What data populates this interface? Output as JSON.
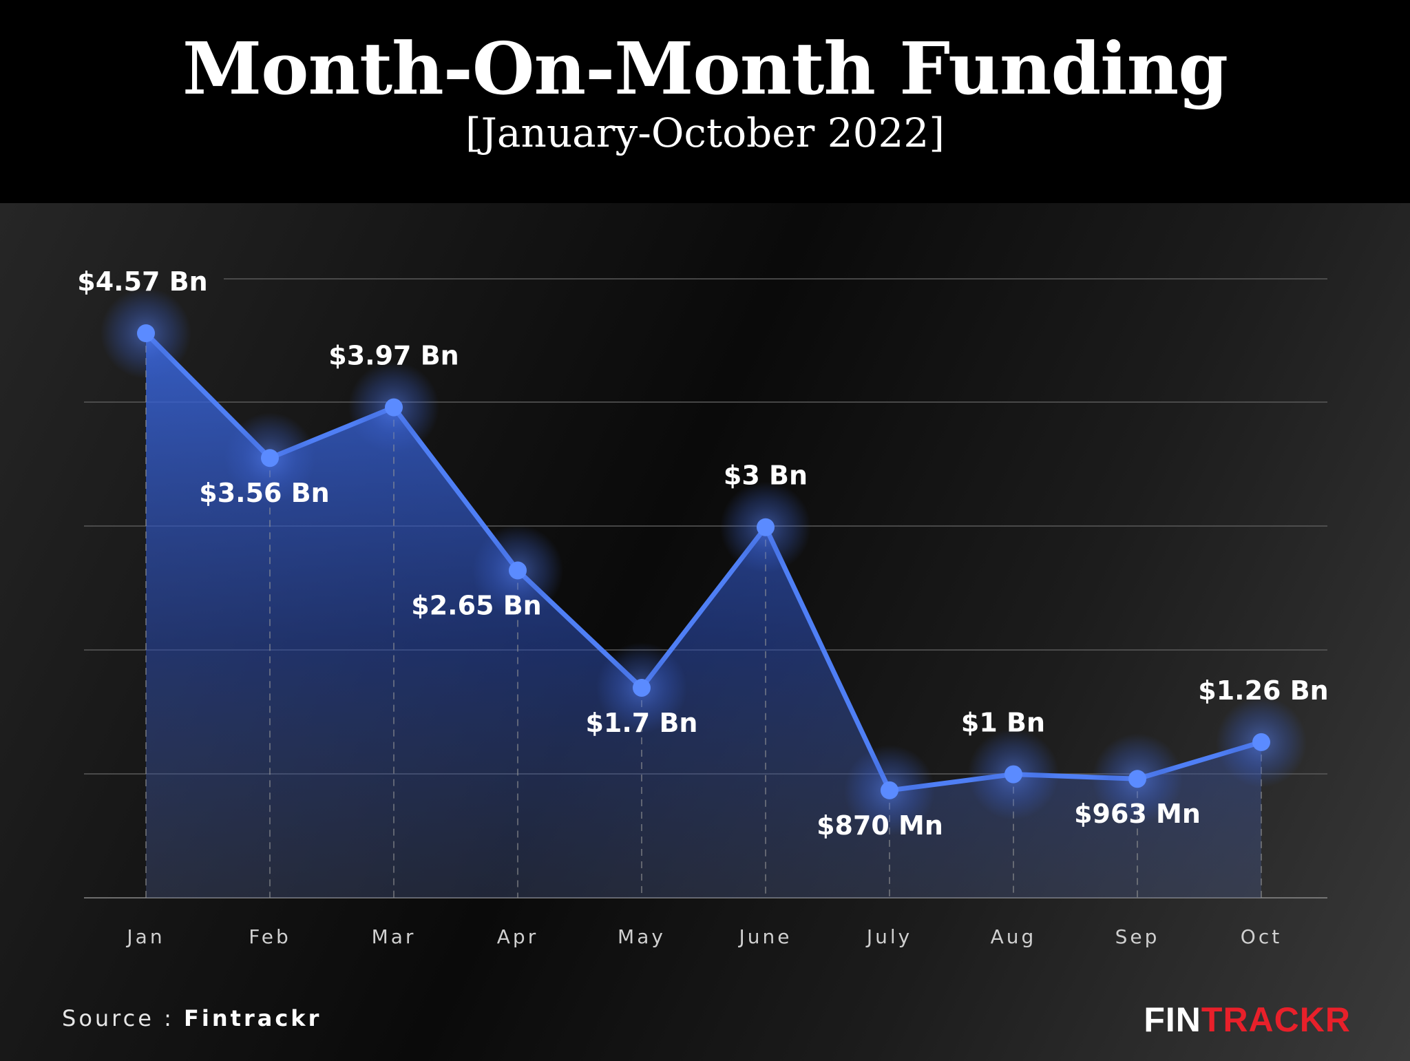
{
  "header": {
    "title": "Month-On-Month Funding",
    "subtitle": "[January-October 2022]"
  },
  "chart_data": {
    "type": "area",
    "title": "Month-On-Month Funding",
    "subtitle": "[January-October 2022]",
    "categories": [
      "Jan",
      "Feb",
      "Mar",
      "Apr",
      "May",
      "June",
      "July",
      "Aug",
      "Sep",
      "Oct"
    ],
    "series": [
      {
        "values": [
          4.57,
          3.56,
          3.97,
          2.65,
          1.7,
          3.0,
          0.87,
          1.0,
          0.963,
          1.26
        ],
        "labels": [
          "$4.57 Bn",
          "$3.56 Bn",
          "$3.97 Bn",
          "$2.65 Bn",
          "$1.7 Bn",
          "$3 Bn",
          "$870 Mn",
          "$1 Bn",
          "$963 Mn",
          "$1.26 Bn"
        ]
      }
    ],
    "unit": "USD Bn",
    "ylim": [
      0,
      5
    ],
    "grid": true,
    "line_color": "#4f7ff5"
  },
  "footer": {
    "source_prefix": "Source : ",
    "source_name": "Fintrackr",
    "brand_white": "FIN",
    "brand_red": "TRACKR"
  },
  "colors": {
    "background": "#000000",
    "line": "#4f7ff5",
    "text": "#ffffff",
    "brand_red": "#e8202a"
  }
}
